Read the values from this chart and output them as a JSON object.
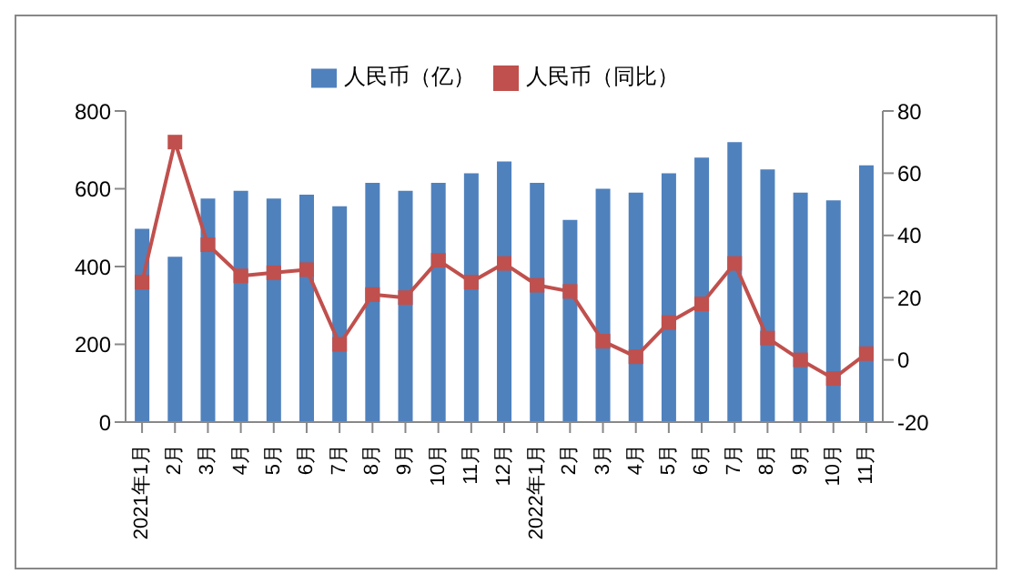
{
  "chart_data": {
    "type": "bar",
    "categories": [
      "2021年1月",
      "2月",
      "3月",
      "4月",
      "5月",
      "6月",
      "7月",
      "8月",
      "9月",
      "10月",
      "11月",
      "12月",
      "2022年1月",
      "2月",
      "3月",
      "4月",
      "5月",
      "6月",
      "7月",
      "8月",
      "9月",
      "10月",
      "11月"
    ],
    "series": [
      {
        "name": "人民币（亿）",
        "color": "#4f81bd",
        "values": [
          497,
          425,
          575,
          595,
          575,
          585,
          555,
          615,
          595,
          615,
          640,
          670,
          615,
          520,
          600,
          590,
          640,
          680,
          720,
          650,
          590,
          570,
          660
        ]
      },
      {
        "name": "人民币（同比）",
        "type": "line",
        "axis": "y2",
        "color": "#c0504d",
        "marker": "square",
        "values": [
          25,
          70,
          37,
          27,
          28,
          29,
          5,
          21,
          20,
          32,
          25,
          31,
          24,
          22,
          6,
          1,
          12,
          18,
          31,
          7,
          0,
          -6,
          2
        ]
      }
    ],
    "ylim": [
      0,
      800
    ],
    "yticks": [
      0,
      200,
      400,
      600,
      800
    ],
    "y2lim": [
      -20,
      80
    ],
    "y2ticks": [
      -20,
      0,
      20,
      40,
      60,
      80
    ],
    "grid": false,
    "legend": "top"
  }
}
